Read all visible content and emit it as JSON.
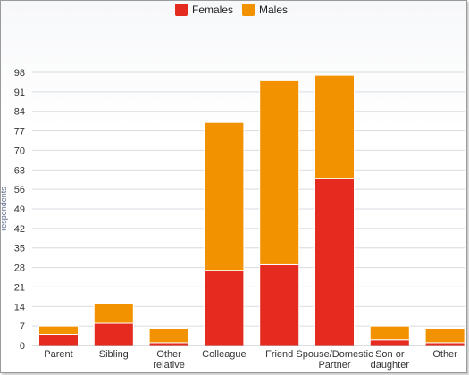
{
  "chart_data": {
    "type": "bar",
    "stacked": true,
    "categories": [
      [
        "Parent"
      ],
      [
        "Sibling"
      ],
      [
        "Other",
        "relative"
      ],
      [
        "Colleague"
      ],
      [
        "Friend"
      ],
      [
        "Spouse/Domestic",
        "Partner"
      ],
      [
        "Son or",
        "daughter"
      ],
      [
        "Other"
      ]
    ],
    "series": [
      {
        "name": "Females",
        "color": "#e52a1f",
        "values": [
          4,
          8,
          1,
          27,
          29,
          60,
          2,
          1
        ]
      },
      {
        "name": "Males",
        "color": "#f39200",
        "values": [
          3,
          7,
          5,
          53,
          66,
          37,
          5,
          5
        ]
      }
    ],
    "ylabel": "respondents",
    "yticks": [
      0,
      7,
      14,
      21,
      28,
      35,
      42,
      49,
      56,
      63,
      70,
      77,
      84,
      91,
      98
    ],
    "ylim": [
      0,
      100
    ],
    "grid": true,
    "legend_position": "top-center"
  }
}
